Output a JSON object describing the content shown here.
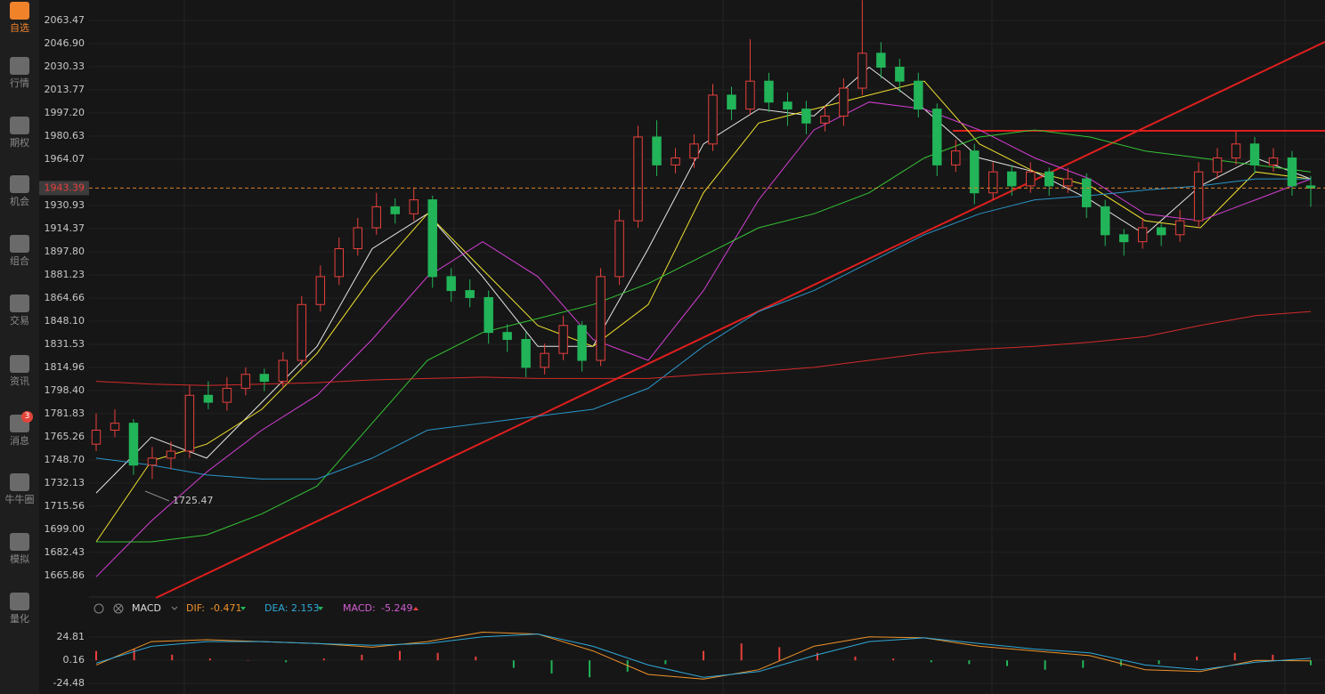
{
  "sidebar": {
    "items": [
      "自选",
      "行情",
      "期权",
      "机会",
      "组合",
      "交易",
      "资讯",
      "消息",
      "牛牛圈",
      "模拟",
      "量化"
    ],
    "active": 0,
    "badge_item": 7,
    "badge": 3
  },
  "chart_data": {
    "type": "candlestick",
    "ylim": [
      1651.14,
      2078.13
    ],
    "yticks": [
      2063.47,
      {
        "value": 2046.9,
        "label": "2046.90"
      },
      2030.33,
      2013.77,
      {
        "value": 1997.2,
        "label": "1997.20"
      },
      1980.63,
      1964.07,
      1930.93,
      1914.37,
      {
        "value": 1897.8,
        "label": "1897.80"
      },
      1881.23,
      1864.66,
      {
        "value": 1848.1,
        "label": "1848.10"
      },
      1831.53,
      1814.96,
      {
        "value": 1798.4,
        "label": "1798.40"
      },
      1781.83,
      1765.26,
      {
        "value": 1748.7,
        "label": "1748.70"
      },
      1732.13,
      1715.56,
      {
        "value": 1699,
        "label": "1699.00"
      },
      1682.43,
      1665.86
    ],
    "current_price": 1943.39,
    "low_label": 1725.47,
    "up_color": "#e8403c",
    "down_color": "#22b458",
    "ohlc": [
      [
        1760,
        1782,
        1755,
        1770
      ],
      [
        1770,
        1785,
        1765,
        1775
      ],
      [
        1775,
        1778,
        1738,
        1745
      ],
      [
        1745,
        1758,
        1735,
        1750
      ],
      [
        1750,
        1762,
        1742,
        1755
      ],
      [
        1755,
        1802,
        1750,
        1795
      ],
      [
        1795,
        1805,
        1785,
        1790
      ],
      [
        1790,
        1808,
        1784,
        1800
      ],
      [
        1800,
        1815,
        1795,
        1810
      ],
      [
        1810,
        1814,
        1798,
        1805
      ],
      [
        1805,
        1826,
        1800,
        1820
      ],
      [
        1820,
        1866,
        1816,
        1860
      ],
      [
        1860,
        1888,
        1855,
        1880
      ],
      [
        1880,
        1908,
        1874,
        1900
      ],
      [
        1900,
        1922,
        1895,
        1915
      ],
      [
        1915,
        1940,
        1910,
        1930
      ],
      [
        1930,
        1936,
        1918,
        1925
      ],
      [
        1925,
        1944,
        1920,
        1935
      ],
      [
        1935,
        1938,
        1872,
        1880
      ],
      [
        1880,
        1886,
        1862,
        1870
      ],
      [
        1870,
        1878,
        1858,
        1865
      ],
      [
        1865,
        1870,
        1832,
        1840
      ],
      [
        1840,
        1846,
        1826,
        1835
      ],
      [
        1835,
        1840,
        1808,
        1815
      ],
      [
        1815,
        1832,
        1810,
        1825
      ],
      [
        1825,
        1852,
        1820,
        1845
      ],
      [
        1845,
        1848,
        1812,
        1820
      ],
      [
        1820,
        1886,
        1816,
        1880
      ],
      [
        1880,
        1928,
        1874,
        1920
      ],
      [
        1920,
        1988,
        1915,
        1980
      ],
      [
        1980,
        1992,
        1952,
        1960
      ],
      [
        1960,
        1972,
        1954,
        1965
      ],
      [
        1965,
        1982,
        1958,
        1975
      ],
      [
        1975,
        2018,
        1970,
        2010
      ],
      [
        2010,
        2016,
        1992,
        2000
      ],
      [
        2000,
        2050,
        1996,
        2020
      ],
      [
        2020,
        2026,
        1998,
        2005
      ],
      [
        2005,
        2012,
        1988,
        2000
      ],
      [
        2000,
        2006,
        1982,
        1990
      ],
      [
        1990,
        2002,
        1984,
        1995
      ],
      [
        1995,
        2022,
        1988,
        2015
      ],
      [
        2015,
        2078,
        2010,
        2040
      ],
      [
        2040,
        2048,
        2022,
        2030
      ],
      [
        2030,
        2036,
        2012,
        2020
      ],
      [
        2020,
        2026,
        1994,
        2000
      ],
      [
        2000,
        2004,
        1952,
        1960
      ],
      [
        1960,
        1978,
        1955,
        1970
      ],
      [
        1970,
        1975,
        1932,
        1940
      ],
      [
        1940,
        1962,
        1935,
        1955
      ],
      [
        1955,
        1960,
        1938,
        1945
      ],
      [
        1945,
        1962,
        1940,
        1955
      ],
      [
        1955,
        1958,
        1938,
        1945
      ],
      [
        1945,
        1958,
        1940,
        1950
      ],
      [
        1950,
        1954,
        1922,
        1930
      ],
      [
        1930,
        1935,
        1902,
        1910
      ],
      [
        1910,
        1914,
        1895,
        1905
      ],
      [
        1905,
        1922,
        1900,
        1915
      ],
      [
        1915,
        1918,
        1902,
        1910
      ],
      [
        1910,
        1928,
        1905,
        1920
      ],
      [
        1920,
        1962,
        1915,
        1955
      ],
      [
        1955,
        1972,
        1950,
        1965
      ],
      [
        1965,
        1984,
        1960,
        1975
      ],
      [
        1975,
        1980,
        1954,
        1960
      ],
      [
        1960,
        1972,
        1955,
        1965
      ],
      [
        1965,
        1970,
        1938,
        1945
      ],
      [
        1945,
        1952,
        1930,
        1943.39
      ]
    ],
    "ma": [
      {
        "color": "#e6e6e6",
        "values": [
          1725,
          1765,
          1750,
          1790,
          1830,
          1900,
          1925,
          1880,
          1830,
          1830,
          1900,
          1975,
          2000,
          1995,
          2030,
          2000,
          1965,
          1955,
          1935,
          1910,
          1945,
          1965,
          1950
        ]
      },
      {
        "color": "#f0e130",
        "values": [
          1690,
          1748,
          1760,
          1785,
          1825,
          1880,
          1925,
          1885,
          1845,
          1830,
          1860,
          1940,
          1990,
          2000,
          2010,
          2020,
          1975,
          1955,
          1945,
          1920,
          1915,
          1955,
          1950
        ]
      },
      {
        "color": "#d43fd4",
        "values": [
          1665,
          1705,
          1740,
          1770,
          1795,
          1835,
          1880,
          1905,
          1880,
          1835,
          1820,
          1870,
          1935,
          1985,
          2005,
          2000,
          1985,
          1965,
          1950,
          1925,
          1920,
          1935,
          1950
        ]
      },
      {
        "color": "#35c435",
        "values": [
          1690,
          1690,
          1695,
          1710,
          1730,
          1775,
          1820,
          1840,
          1850,
          1860,
          1875,
          1895,
          1915,
          1925,
          1940,
          1965,
          1980,
          1985,
          1980,
          1970,
          1965,
          1960,
          1955
        ]
      },
      {
        "color": "#2a95c8",
        "values": [
          1750,
          1745,
          1738,
          1735,
          1735,
          1750,
          1770,
          1775,
          1780,
          1785,
          1800,
          1830,
          1855,
          1870,
          1890,
          1910,
          1925,
          1935,
          1938,
          1942,
          1945,
          1950,
          1950
        ]
      },
      {
        "color": "#d42a2a",
        "values": [
          1805,
          1803,
          1802,
          1803,
          1804,
          1806,
          1807,
          1808,
          1807,
          1807,
          1807,
          1810,
          1812,
          1815,
          1820,
          1825,
          1828,
          1830,
          1833,
          1837,
          1845,
          1852,
          1855
        ]
      }
    ],
    "indicator": {
      "name": "MACD",
      "dif_label": "DIF:",
      "dif": -0.471,
      "dea_label": "DEA:",
      "dea": 2.153,
      "macd_label": "MACD:",
      "macd": -5.249,
      "ylim": [
        -33.96,
        39.98
      ],
      "yticks": [
        24.81,
        0.16,
        -24.48
      ],
      "series": [
        {
          "color": "#f0932a",
          "values": [
            -5,
            20,
            22,
            20,
            18,
            14,
            20,
            30,
            28,
            10,
            -15,
            -20,
            -10,
            15,
            25,
            24,
            15,
            10,
            5,
            -10,
            -12,
            0,
            -0.471
          ]
        },
        {
          "color": "#2fa8d8",
          "values": [
            -3,
            15,
            20,
            20,
            18,
            16,
            18,
            25,
            28,
            15,
            -5,
            -18,
            -12,
            5,
            20,
            24,
            18,
            12,
            8,
            -5,
            -10,
            -2,
            2.153
          ]
        }
      ],
      "histogram": [
        10,
        12,
        6,
        2,
        0,
        -2,
        2,
        6,
        10,
        8,
        4,
        -8,
        -14,
        -18,
        -12,
        -4,
        10,
        18,
        14,
        8,
        4,
        2,
        -2,
        -4,
        -6,
        -10,
        -8,
        -6,
        -4,
        4,
        8,
        6,
        -5.249
      ]
    }
  }
}
